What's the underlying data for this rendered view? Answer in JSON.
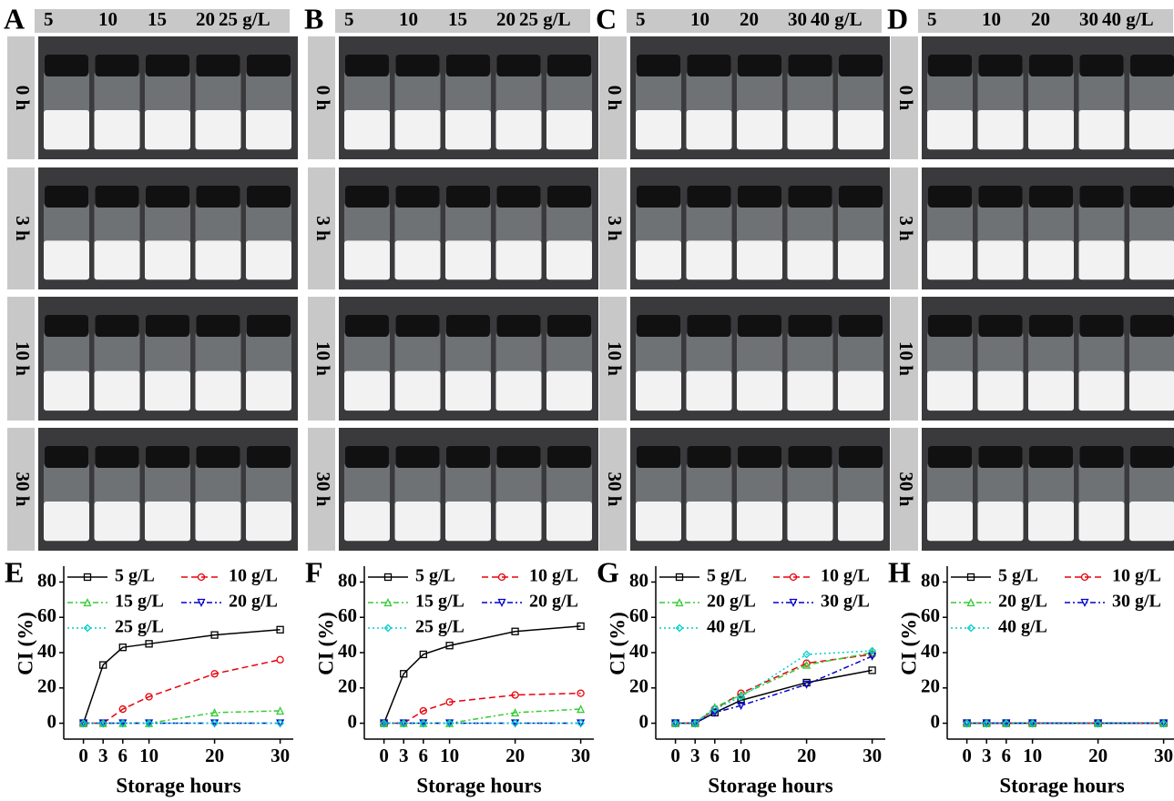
{
  "panels": [
    {
      "letter": "A",
      "concentrations": [
        "5",
        "10",
        "15",
        "20",
        "25 g/L"
      ],
      "times": [
        "0 h",
        "3 h",
        "10 h",
        "30 h"
      ]
    },
    {
      "letter": "B",
      "concentrations": [
        "5",
        "10",
        "15",
        "20",
        "25 g/L"
      ],
      "times": [
        "0 h",
        "3 h",
        "10 h",
        "30 h"
      ]
    },
    {
      "letter": "C",
      "concentrations": [
        "5",
        "10",
        "20",
        "30",
        "40 g/L"
      ],
      "times": [
        "0 h",
        "3 h",
        "10 h",
        "30 h"
      ]
    },
    {
      "letter": "D",
      "concentrations": [
        "5",
        "10",
        "20",
        "30",
        "40 g/L"
      ],
      "times": [
        "0 h",
        "3 h",
        "10 h",
        "30 h"
      ]
    }
  ],
  "chart_data": [
    {
      "type": "line",
      "panel": "E",
      "x_label": "Storage hours",
      "y_label": "CI (%)",
      "x": [
        0,
        3,
        6,
        10,
        20,
        30
      ],
      "xlim": [
        -3,
        32
      ],
      "xticks": [
        0,
        3,
        6,
        10,
        20,
        30
      ],
      "ylim": [
        -9,
        89
      ],
      "yticks": [
        0,
        20,
        40,
        60,
        80
      ],
      "series": [
        {
          "name": "5 g/L",
          "color": "#000000",
          "values": [
            0,
            33,
            43,
            45,
            50,
            53
          ]
        },
        {
          "name": "10 g/L",
          "color": "#e8000b",
          "values": [
            0,
            0,
            8,
            15,
            28,
            36
          ]
        },
        {
          "name": "15 g/L",
          "color": "#33cc33",
          "values": [
            0,
            0,
            0,
            0,
            6,
            7
          ]
        },
        {
          "name": "20 g/L",
          "color": "#0000cc",
          "values": [
            0,
            0,
            0,
            0,
            0,
            0
          ]
        },
        {
          "name": "25 g/L",
          "color": "#00cccc",
          "values": [
            0,
            0,
            0,
            0,
            0,
            0
          ]
        }
      ]
    },
    {
      "type": "line",
      "panel": "F",
      "x_label": "Storage hours",
      "y_label": "CI (%)",
      "x": [
        0,
        3,
        6,
        10,
        20,
        30
      ],
      "xlim": [
        -3,
        32
      ],
      "xticks": [
        0,
        3,
        6,
        10,
        20,
        30
      ],
      "ylim": [
        -9,
        89
      ],
      "yticks": [
        0,
        20,
        40,
        60,
        80
      ],
      "series": [
        {
          "name": "5 g/L",
          "color": "#000000",
          "values": [
            0,
            28,
            39,
            44,
            52,
            55
          ]
        },
        {
          "name": "10 g/L",
          "color": "#e8000b",
          "values": [
            0,
            0,
            7,
            12,
            16,
            17
          ]
        },
        {
          "name": "15 g/L",
          "color": "#33cc33",
          "values": [
            0,
            0,
            0,
            0,
            6,
            8
          ]
        },
        {
          "name": "20 g/L",
          "color": "#0000cc",
          "values": [
            0,
            0,
            0,
            0,
            0,
            0
          ]
        },
        {
          "name": "25 g/L",
          "color": "#00cccc",
          "values": [
            0,
            0,
            0,
            0,
            0,
            0
          ]
        }
      ]
    },
    {
      "type": "line",
      "panel": "G",
      "x_label": "Storage hours",
      "y_label": "CI (%)",
      "x": [
        0,
        3,
        6,
        10,
        20,
        30
      ],
      "xlim": [
        -3,
        32
      ],
      "xticks": [
        0,
        3,
        6,
        10,
        20,
        30
      ],
      "ylim": [
        -9,
        89
      ],
      "yticks": [
        0,
        20,
        40,
        60,
        80
      ],
      "series": [
        {
          "name": "5 g/L",
          "color": "#000000",
          "values": [
            0,
            0,
            6,
            13,
            23,
            30
          ]
        },
        {
          "name": "10 g/L",
          "color": "#e8000b",
          "values": [
            0,
            0,
            8,
            17,
            34,
            39
          ]
        },
        {
          "name": "20 g/L",
          "color": "#33cc33",
          "values": [
            0,
            0,
            9,
            16,
            33,
            40
          ]
        },
        {
          "name": "30 g/L",
          "color": "#0000cc",
          "values": [
            0,
            0,
            6,
            10,
            22,
            38
          ]
        },
        {
          "name": "40 g/L",
          "color": "#00cccc",
          "values": [
            0,
            0,
            8,
            15,
            39,
            41
          ]
        }
      ]
    },
    {
      "type": "line",
      "panel": "H",
      "x_label": "Storage hours",
      "y_label": "CI (%)",
      "x": [
        0,
        3,
        6,
        10,
        20,
        30
      ],
      "xlim": [
        -3,
        32
      ],
      "xticks": [
        0,
        3,
        6,
        10,
        20,
        30
      ],
      "ylim": [
        -9,
        89
      ],
      "yticks": [
        0,
        20,
        40,
        60,
        80
      ],
      "series": [
        {
          "name": "5 g/L",
          "color": "#000000",
          "values": [
            0,
            0,
            0,
            0,
            0,
            0
          ]
        },
        {
          "name": "10 g/L",
          "color": "#e8000b",
          "values": [
            0,
            0,
            0,
            0,
            0,
            0
          ]
        },
        {
          "name": "20 g/L",
          "color": "#33cc33",
          "values": [
            0,
            0,
            0,
            0,
            0,
            0
          ]
        },
        {
          "name": "30 g/L",
          "color": "#0000cc",
          "values": [
            0,
            0,
            0,
            0,
            0,
            0
          ]
        },
        {
          "name": "40 g/L",
          "color": "#00cccc",
          "values": [
            0,
            0,
            0,
            0,
            0,
            0
          ]
        }
      ]
    }
  ]
}
